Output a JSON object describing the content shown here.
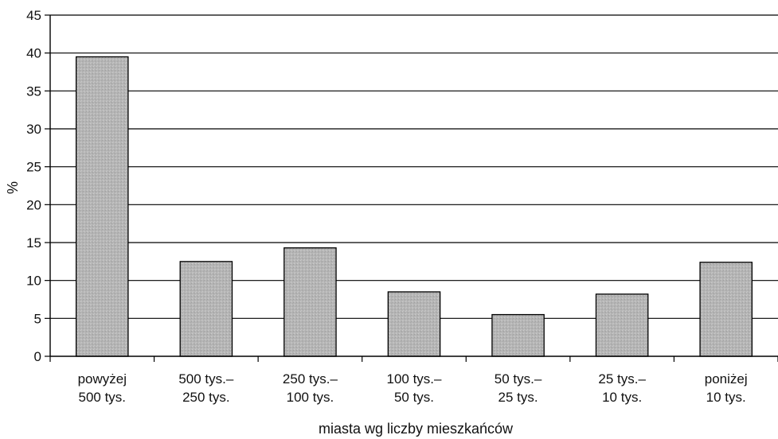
{
  "chart_data": {
    "type": "bar",
    "title": "",
    "xlabel": "miasta wg liczby mieszkańców",
    "ylabel": "%",
    "ylim": [
      0,
      45
    ],
    "yticks": [
      0,
      5,
      10,
      15,
      20,
      25,
      30,
      35,
      40,
      45
    ],
    "ytick_labels": [
      "0",
      "5",
      "10",
      "15",
      "20",
      "25",
      "30",
      "35",
      "40",
      "45"
    ],
    "grid": "horizontal",
    "legend": "none",
    "categories": [
      {
        "line1": "powyżej",
        "line2": "500 tys."
      },
      {
        "line1": "500 tys.–",
        "line2": "250 tys."
      },
      {
        "line1": "250 tys.–",
        "line2": "100 tys."
      },
      {
        "line1": "100 tys.–",
        "line2": "50 tys."
      },
      {
        "line1": "50 tys.–",
        "line2": "25 tys."
      },
      {
        "line1": "25 tys.–",
        "line2": "10 tys."
      },
      {
        "line1": "poniżej",
        "line2": "10 tys."
      }
    ],
    "values": [
      39.5,
      12.5,
      14.3,
      8.5,
      5.5,
      8.2,
      12.4
    ],
    "bar_color": "#b5b5b5",
    "bar_stroke": "#000000"
  }
}
